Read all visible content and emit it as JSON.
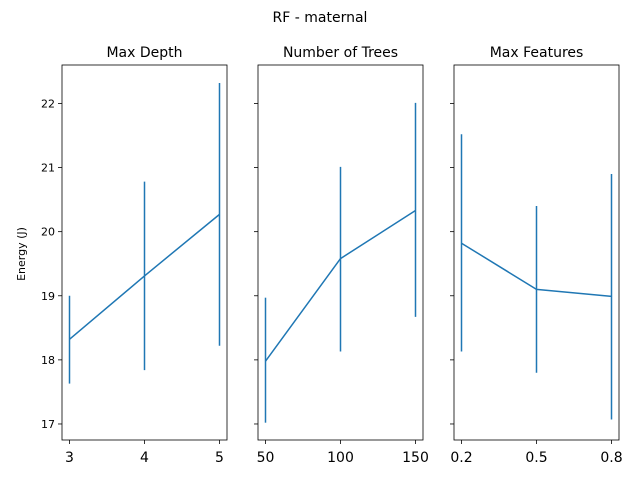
{
  "chart_data": {
    "type": "line",
    "title": "RF - maternal",
    "ylabel": "Energy (J)",
    "ylim": [
      16.75,
      22.6
    ],
    "yticks": [
      17,
      18,
      19,
      20,
      21,
      22
    ],
    "color": "#1f77b4",
    "grid": false,
    "legend": "none",
    "panels": [
      {
        "title": "Max Depth",
        "xlim": [
          2.9,
          5.1
        ],
        "xticks": [
          3,
          4,
          5
        ],
        "xtick_labels": [
          "3",
          "4",
          "5"
        ],
        "x": [
          3,
          4,
          5
        ],
        "y": [
          18.32,
          19.31,
          20.27
        ],
        "yerr_low": [
          17.63,
          17.84,
          18.22
        ],
        "yerr_high": [
          19.0,
          20.78,
          22.32
        ]
      },
      {
        "title": "Number of Trees",
        "xlim": [
          45,
          155
        ],
        "xticks": [
          50,
          100,
          150
        ],
        "xtick_labels": [
          "50",
          "100",
          "150"
        ],
        "x": [
          50,
          100,
          150
        ],
        "y": [
          17.98,
          19.58,
          20.33
        ],
        "yerr_low": [
          17.02,
          18.13,
          18.67
        ],
        "yerr_high": [
          18.97,
          21.01,
          22.01
        ]
      },
      {
        "title": "Max Features",
        "xlim": [
          0.17,
          0.83
        ],
        "xticks": [
          0.2,
          0.5,
          0.8
        ],
        "xtick_labels": [
          "0.2",
          "0.5",
          "0.8"
        ],
        "x": [
          0.2,
          0.5,
          0.8
        ],
        "y": [
          19.82,
          19.1,
          18.99
        ],
        "yerr_low": [
          18.13,
          17.8,
          17.07
        ],
        "yerr_high": [
          21.52,
          20.4,
          20.9
        ]
      }
    ]
  }
}
